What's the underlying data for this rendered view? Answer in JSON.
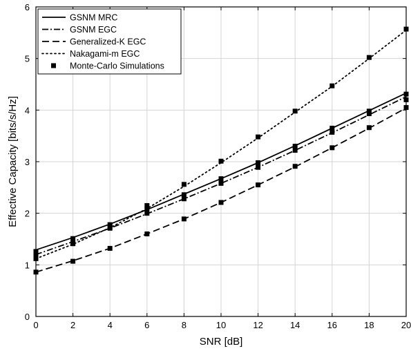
{
  "chart_data": {
    "type": "line",
    "xlabel": "SNR [dB]",
    "ylabel": "Effective Capacity [bits/s/Hz]",
    "xlim": [
      0,
      20
    ],
    "ylim": [
      0,
      6
    ],
    "x_ticks": [
      0,
      2,
      4,
      6,
      8,
      10,
      12,
      14,
      16,
      18,
      20
    ],
    "y_ticks": [
      0,
      1,
      2,
      3,
      4,
      5,
      6
    ],
    "grid": true,
    "legend_position": "top-left",
    "series": [
      {
        "name": "GSNM MRC",
        "style": "solid",
        "x": [
          0,
          2,
          4,
          6,
          8,
          10,
          12,
          14,
          16,
          18,
          20
        ],
        "y": [
          1.29,
          1.53,
          1.79,
          2.07,
          2.37,
          2.67,
          2.98,
          3.31,
          3.65,
          3.99,
          4.33
        ],
        "markers_x": [
          0,
          2,
          4,
          6,
          8,
          10,
          12,
          14,
          16,
          18,
          20
        ],
        "markers_y": [
          1.26,
          1.51,
          1.78,
          2.08,
          2.36,
          2.67,
          2.98,
          3.3,
          3.65,
          3.98,
          4.31
        ]
      },
      {
        "name": "GSNM EGC",
        "style": "dashdot",
        "x": [
          0,
          2,
          4,
          6,
          8,
          10,
          12,
          14,
          16,
          18,
          20
        ],
        "y": [
          1.2,
          1.45,
          1.71,
          1.99,
          2.28,
          2.58,
          2.89,
          3.22,
          3.56,
          3.91,
          4.26
        ],
        "markers_x": [
          0,
          2,
          4,
          6,
          8,
          10,
          12,
          14,
          16,
          18,
          20
        ],
        "markers_y": [
          1.19,
          1.43,
          1.71,
          2.0,
          2.28,
          2.58,
          2.89,
          3.22,
          3.57,
          3.93,
          4.2
        ]
      },
      {
        "name": "Generalized-K EGC",
        "style": "dashed",
        "x": [
          0,
          2,
          4,
          6,
          8,
          10,
          12,
          14,
          16,
          18,
          20
        ],
        "y": [
          0.86,
          1.08,
          1.32,
          1.6,
          1.89,
          2.21,
          2.55,
          2.9,
          3.27,
          3.65,
          4.04
        ],
        "markers_x": [
          0,
          2,
          4,
          6,
          8,
          10,
          12,
          14,
          16,
          18,
          20
        ],
        "markers_y": [
          0.86,
          1.07,
          1.32,
          1.6,
          1.89,
          2.21,
          2.55,
          2.91,
          3.27,
          3.66,
          4.05
        ]
      },
      {
        "name": "Nakagami-m EGC",
        "style": "dotted",
        "x": [
          0,
          2,
          4,
          6,
          8,
          10,
          12,
          14,
          16,
          18,
          20
        ],
        "y": [
          1.12,
          1.4,
          1.72,
          2.09,
          2.52,
          2.98,
          3.46,
          3.96,
          4.46,
          5.0,
          5.55
        ],
        "markers_x": [
          0,
          2,
          4,
          6,
          8,
          10,
          12,
          14,
          16,
          18,
          20
        ],
        "markers_y": [
          1.12,
          1.41,
          1.74,
          2.15,
          2.56,
          3.01,
          3.48,
          3.98,
          4.47,
          5.02,
          5.57
        ]
      }
    ],
    "legend": [
      {
        "label": "GSNM MRC",
        "style": "solid"
      },
      {
        "label": "GSNM EGC",
        "style": "dashdot"
      },
      {
        "label": "Generalized-K EGC",
        "style": "dashed"
      },
      {
        "label": "Nakagami-m EGC",
        "style": "dotted"
      },
      {
        "label": "Monte-Carlo Simulations",
        "style": "marker"
      }
    ]
  }
}
